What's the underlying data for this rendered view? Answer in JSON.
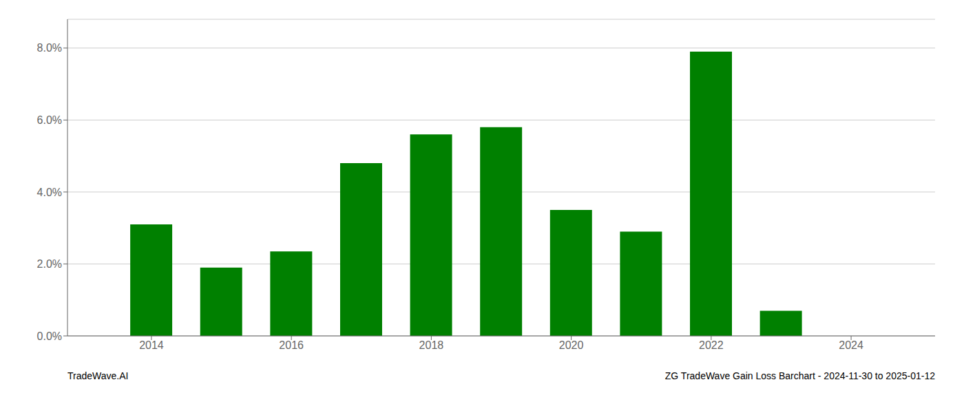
{
  "chart_data": {
    "type": "bar",
    "title": "ZG TradeWave Gain Loss Barchart - 2024-11-30 to 2025-01-12",
    "annotations": [
      "TradeWave.AI"
    ],
    "x": [
      2014,
      2015,
      2016,
      2017,
      2018,
      2019,
      2020,
      2021,
      2022,
      2023
    ],
    "values": [
      0.031,
      0.019,
      0.0235,
      0.048,
      0.056,
      0.058,
      0.035,
      0.029,
      0.079,
      0.007
    ],
    "color": "#008000",
    "xlim": [
      2012.8,
      2025.2
    ],
    "xticks": [
      2014,
      2016,
      2018,
      2020,
      2022,
      2024
    ],
    "ylim": [
      0,
      0.088
    ],
    "yticks": [
      {
        "value": 0.0,
        "label": "0.0%"
      },
      {
        "value": 0.02,
        "label": "2.0%"
      },
      {
        "value": 0.04,
        "label": "4.0%"
      },
      {
        "value": 0.06,
        "label": "6.0%"
      },
      {
        "value": 0.08,
        "label": "8.0%"
      }
    ],
    "grid": true
  }
}
